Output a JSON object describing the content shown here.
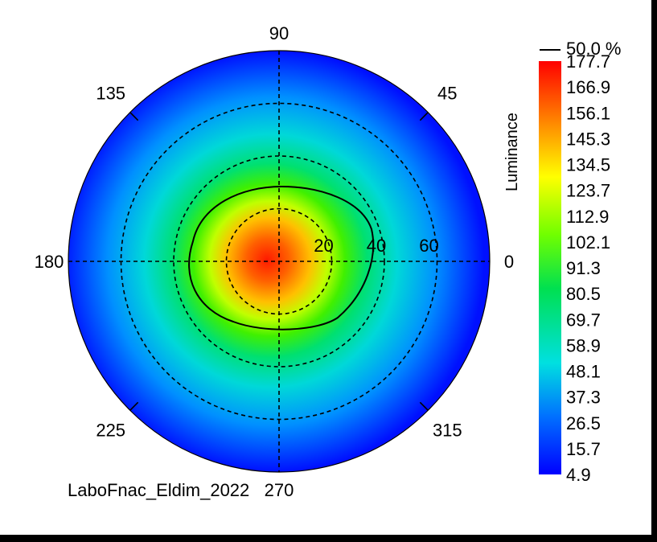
{
  "chart_data": {
    "type": "heatmap",
    "projection": "polar",
    "angle_labels": [
      {
        "angle": 90,
        "text": "90"
      },
      {
        "angle": 45,
        "text": "45"
      },
      {
        "angle": 135,
        "text": "135"
      },
      {
        "angle": 180,
        "text": "180"
      },
      {
        "angle": 0,
        "text": "0"
      },
      {
        "angle": 225,
        "text": "225"
      },
      {
        "angle": 315,
        "text": "315"
      },
      {
        "angle": 270,
        "text": "270"
      }
    ],
    "radial_rings": [
      20,
      40,
      60
    ],
    "radial_max": 80,
    "ring_labels": [
      "20",
      "40",
      "60"
    ],
    "peak_value": 177.7,
    "peak_offset": [
      -8,
      2
    ],
    "contour": {
      "label": "50.0 %",
      "level": 91.3
    },
    "colorbar": {
      "title": "Luminance",
      "min": 4.9,
      "max": 177.7,
      "ticks": [
        "177.7",
        "166.9",
        "156.1",
        "145.3",
        "134.5",
        "123.7",
        "112.9",
        "102.1",
        "91.3",
        "80.5",
        "69.7",
        "58.9",
        "48.1",
        "37.3",
        "26.5",
        "15.7",
        "4.9"
      ]
    },
    "footer": "LaboFnac_Eldim_2022"
  }
}
